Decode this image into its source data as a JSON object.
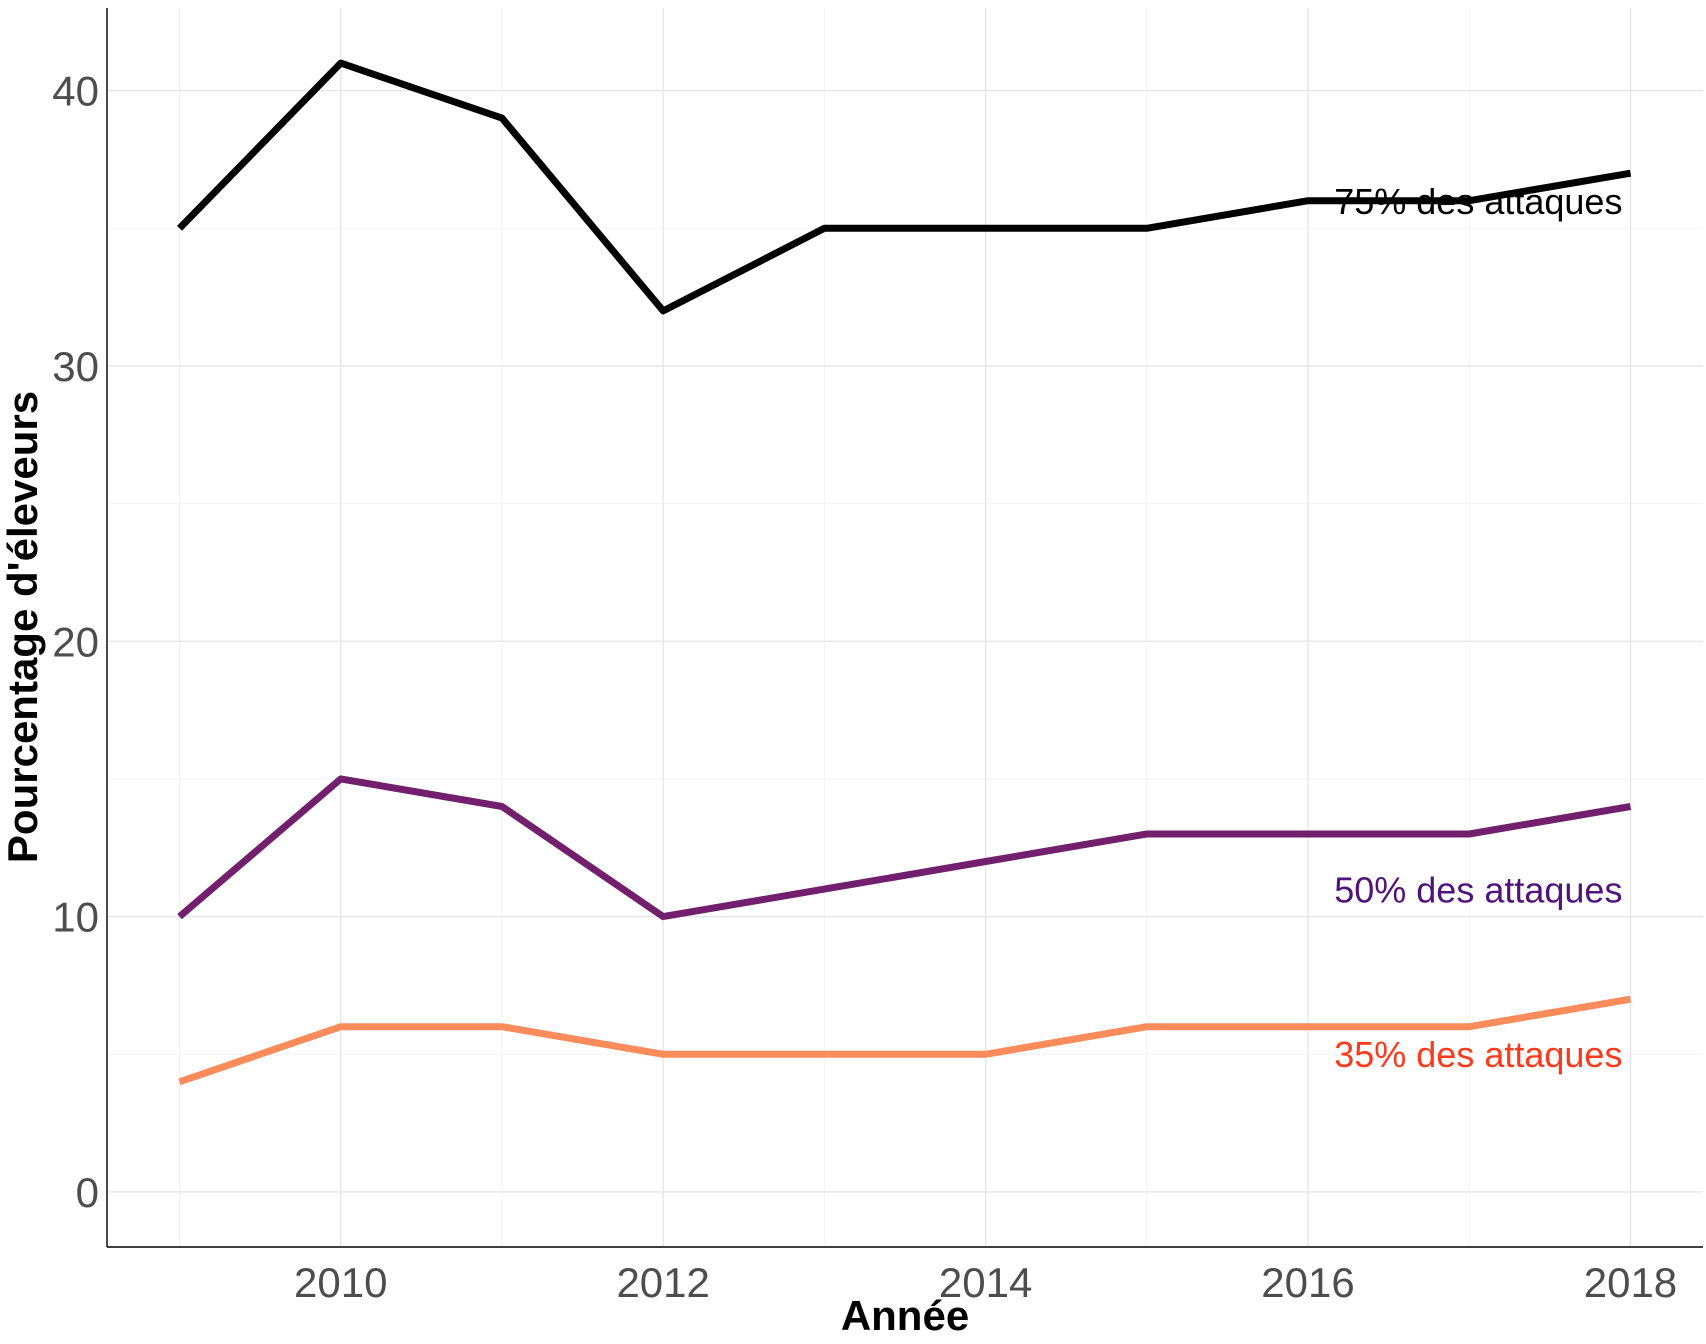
{
  "chart_data": {
    "type": "line",
    "xlabel": "Année",
    "ylabel": "Pourcentage d'éleveurs",
    "x": [
      2009,
      2010,
      2011,
      2012,
      2013,
      2014,
      2015,
      2016,
      2017,
      2018
    ],
    "xlim": [
      2008.55,
      2018.45
    ],
    "ylim": [
      -2,
      43
    ],
    "x_ticks": [
      2010,
      2012,
      2014,
      2016,
      2018
    ],
    "y_ticks": [
      0,
      10,
      20,
      30,
      40
    ],
    "grid": true,
    "series": [
      {
        "name": "75% des attaques",
        "color": "#000000",
        "label_color": "#000000",
        "values": [
          35,
          41,
          39,
          32,
          35,
          35,
          35,
          36,
          36,
          37
        ]
      },
      {
        "name": "50% des attaques",
        "color": "#721f6e",
        "label_color": "#51127c",
        "values": [
          10,
          15,
          14,
          10,
          11,
          12,
          13,
          13,
          13,
          14
        ]
      },
      {
        "name": "35% des attaques",
        "color": "#f98c5a",
        "label_color": "#fc3a1b",
        "values": [
          4,
          6,
          6,
          5,
          5,
          5,
          6,
          6,
          6,
          7
        ]
      }
    ]
  }
}
